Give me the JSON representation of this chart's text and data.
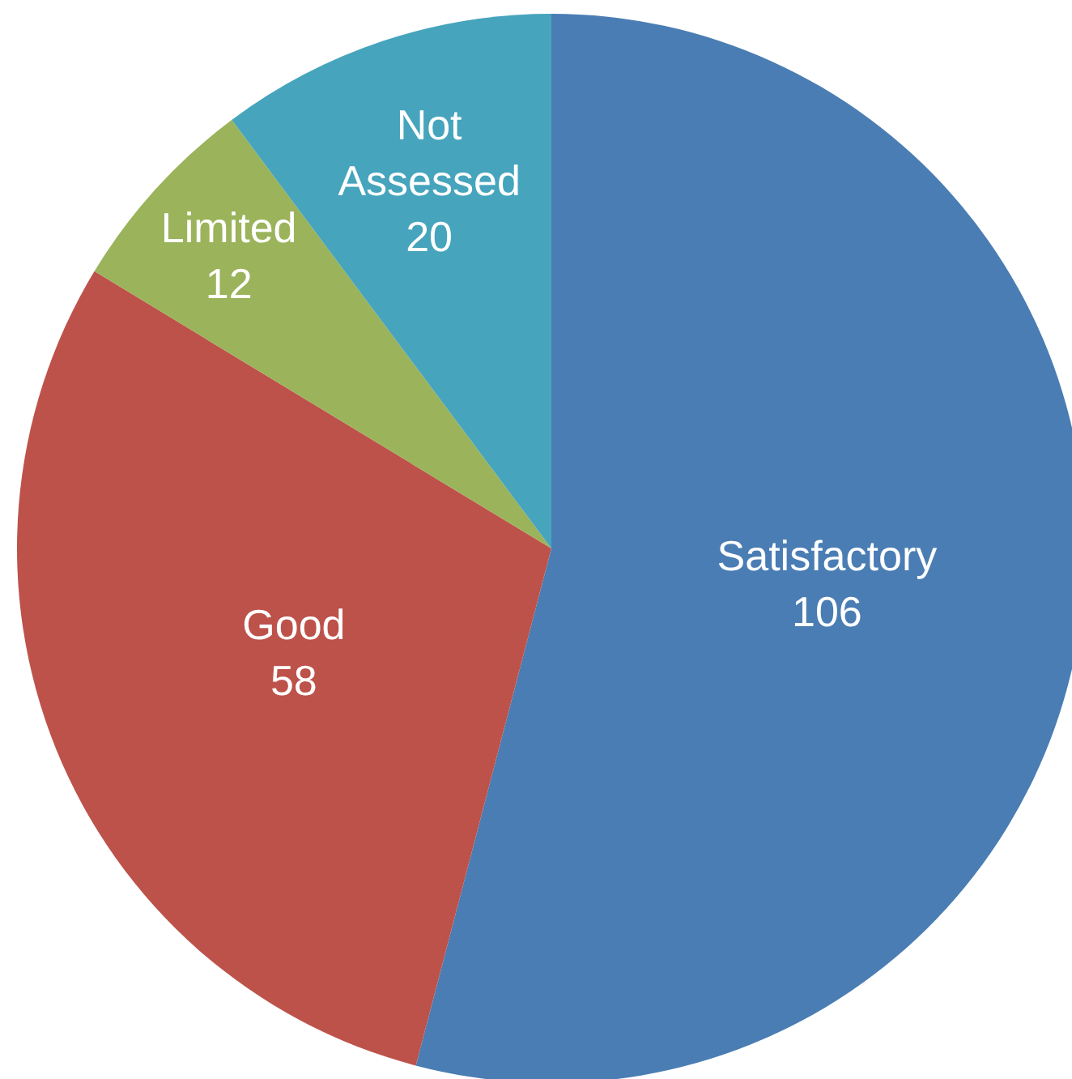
{
  "chart_data": {
    "type": "pie",
    "categories": [
      "Satisfactory",
      "Good",
      "Limited",
      "Not Assessed"
    ],
    "values": [
      106,
      58,
      12,
      20
    ],
    "colors": [
      "#4a7db3",
      "#bd524a",
      "#9bb35a",
      "#46a4bd"
    ],
    "data_labels": true,
    "legend": false
  }
}
